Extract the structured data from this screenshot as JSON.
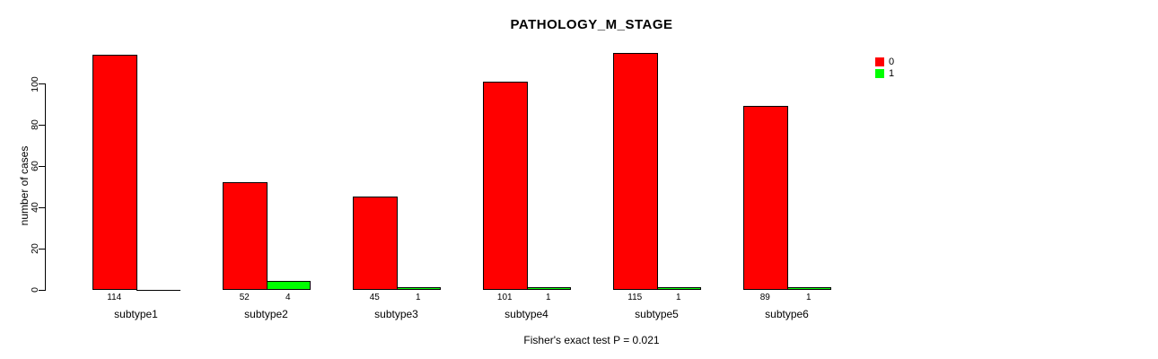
{
  "chart_data": {
    "type": "bar",
    "title": "PATHOLOGY_M_STAGE",
    "ylabel": "number of cases",
    "xlabel": "",
    "footnote": "Fisher's exact test P = 0.021",
    "categories": [
      "subtype1",
      "subtype2",
      "subtype3",
      "subtype4",
      "subtype5",
      "subtype6"
    ],
    "series": [
      {
        "name": "0",
        "color": "#FF0000",
        "values": [
          114,
          52,
          45,
          101,
          115,
          89
        ],
        "bar_labels": [
          "114",
          "52",
          "45",
          "101",
          "115",
          "89"
        ]
      },
      {
        "name": "1",
        "color": "#00FF00",
        "values": [
          0,
          4,
          1,
          1,
          1,
          1
        ],
        "bar_labels": [
          "",
          "4",
          "1",
          "1",
          "1",
          "1"
        ]
      }
    ],
    "yticks": [
      0,
      20,
      40,
      60,
      80,
      100
    ],
    "ylim": [
      0,
      115
    ],
    "grid": false,
    "legend_position": "top-right",
    "bar_edge_color": "#000000"
  }
}
